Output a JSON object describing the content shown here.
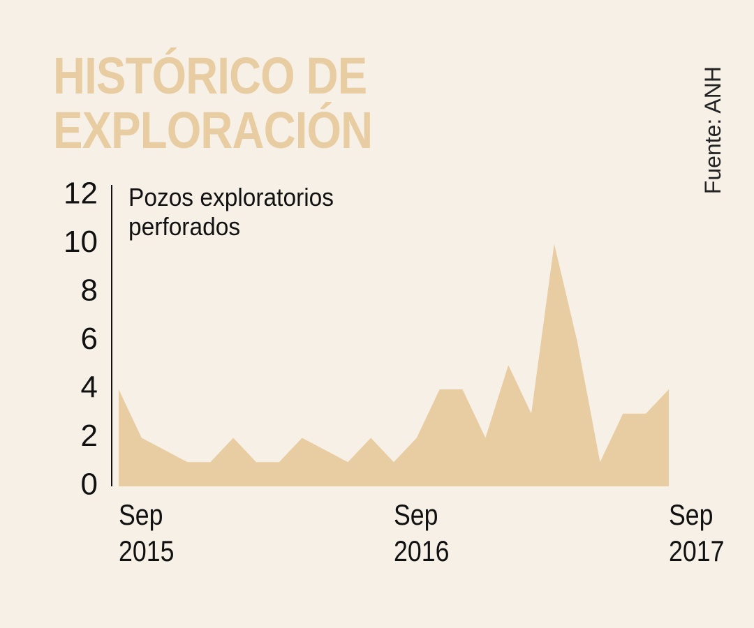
{
  "chart_data": {
    "type": "area",
    "title": "HISTÓRICO DE\nEXPLORACIÓN",
    "subtitle": "Pozos exploratorios perforados",
    "source": "Fuente: ANH",
    "color": "#e8cda2",
    "categories": [
      "Sep\n2015",
      null,
      null,
      null,
      null,
      null,
      null,
      null,
      null,
      null,
      null,
      null,
      "Sep\n2016",
      null,
      null,
      null,
      null,
      null,
      null,
      null,
      null,
      null,
      null,
      null,
      "Sep\n2017"
    ],
    "values": [
      4,
      2,
      1.5,
      1,
      1,
      2,
      1,
      1,
      2,
      1.5,
      1,
      2,
      1,
      2,
      4,
      4,
      2,
      5,
      3,
      10,
      6,
      1,
      3,
      3,
      4
    ],
    "ylim": [
      0,
      12
    ],
    "yticks": [
      0,
      2,
      4,
      6,
      8,
      10,
      12
    ]
  }
}
